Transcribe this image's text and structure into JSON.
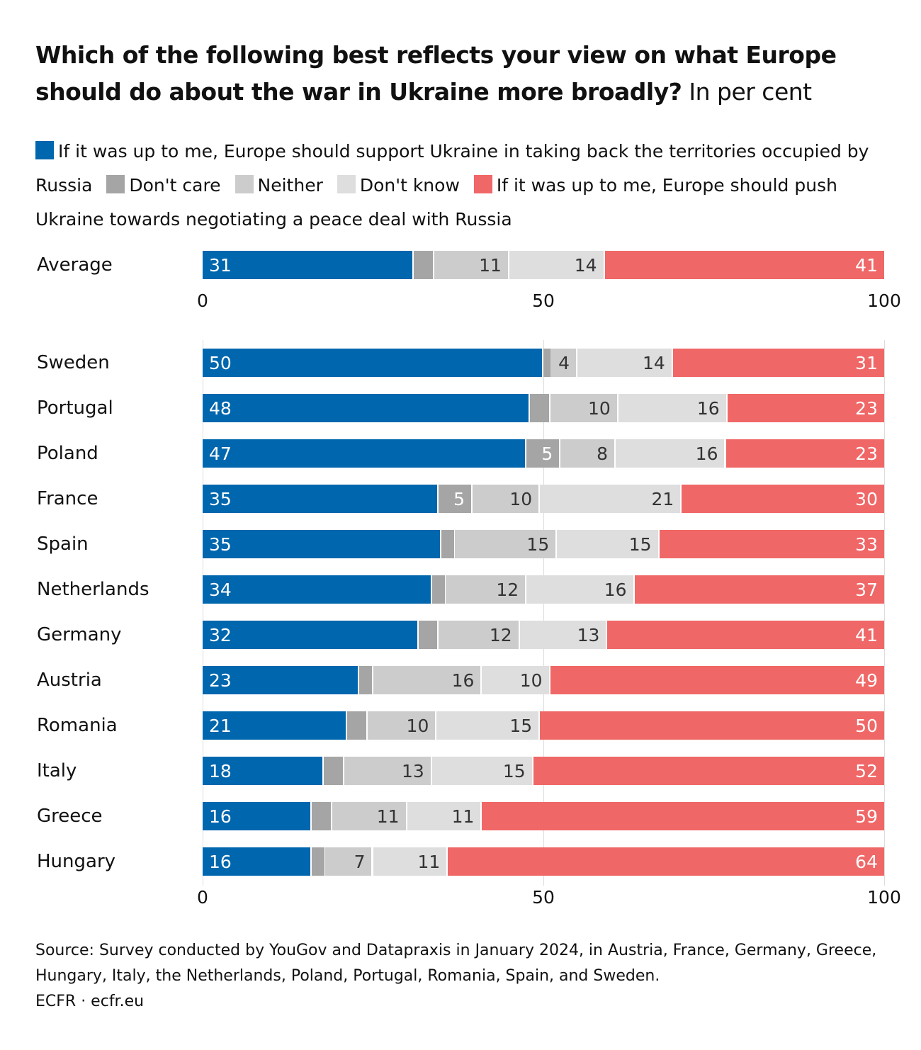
{
  "title": {
    "bold": "Which of the following best reflects your view on what Europe should do about the war in Ukraine more broadly?",
    "unit": "In per cent"
  },
  "colors": {
    "support": "#0066ad",
    "dont_care": "#a5a5a5",
    "neither": "#cccccc",
    "dont_know": "#dedede",
    "push": "#f06767"
  },
  "legend": [
    {
      "key": "support",
      "label": "If it was up to me, Europe should support Ukraine in taking back the territories occupied by Russia"
    },
    {
      "key": "dont_care",
      "label": "Don't care"
    },
    {
      "key": "neither",
      "label": "Neither"
    },
    {
      "key": "dont_know",
      "label": "Don't know"
    },
    {
      "key": "push",
      "label": "If it was up to me, Europe should push Ukraine towards negotiating a peace deal with Russia"
    }
  ],
  "chart_data": {
    "type": "bar",
    "orientation": "horizontal-stacked",
    "xlim": [
      0,
      100
    ],
    "xticks": [
      "0",
      "50",
      "100"
    ],
    "series_keys": [
      "support",
      "dont_care",
      "neither",
      "dont_know",
      "push"
    ],
    "average": {
      "label": "Average",
      "values": [
        31,
        3,
        11,
        14,
        41
      ]
    },
    "categories": [
      "Sweden",
      "Portugal",
      "Poland",
      "France",
      "Spain",
      "Netherlands",
      "Germany",
      "Austria",
      "Romania",
      "Italy",
      "Greece",
      "Hungary"
    ],
    "values": [
      [
        50,
        1,
        4,
        14,
        31
      ],
      [
        48,
        3,
        10,
        16,
        23
      ],
      [
        47,
        5,
        8,
        16,
        23
      ],
      [
        35,
        5,
        10,
        21,
        30
      ],
      [
        35,
        2,
        15,
        15,
        33
      ],
      [
        34,
        2,
        12,
        16,
        37
      ],
      [
        32,
        3,
        12,
        13,
        41
      ],
      [
        23,
        2,
        16,
        10,
        49
      ],
      [
        21,
        3,
        10,
        15,
        50
      ],
      [
        18,
        3,
        13,
        15,
        52
      ],
      [
        16,
        3,
        11,
        11,
        59
      ],
      [
        16,
        2,
        7,
        11,
        64
      ]
    ]
  },
  "source": {
    "line1": "Source: Survey conducted by YouGov and Datapraxis in January 2024, in Austria, France, Germany, Greece, Hungary, Italy, the Netherlands, Poland, Portugal, Romania, Spain, and Sweden.",
    "credit": "ECFR · ecfr.eu"
  }
}
